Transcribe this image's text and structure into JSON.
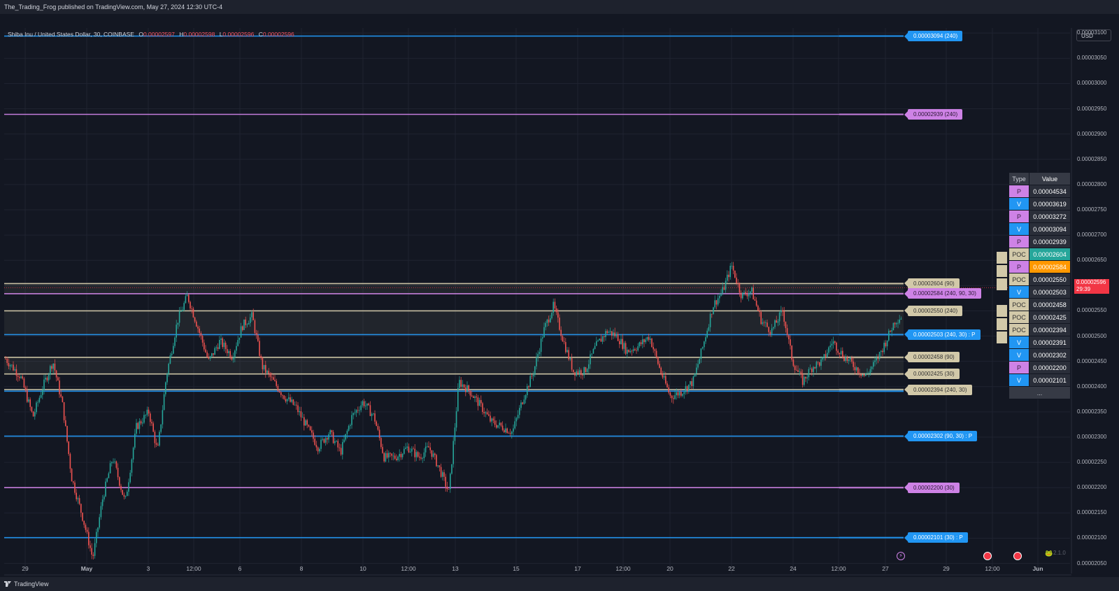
{
  "header": {
    "published": "The_Trading_Frog published on TradingView.com, May 27, 2024 12:30 UTC-4"
  },
  "legend": {
    "symbol": "Shiba Inu / United States Dollar, 30, COINBASE",
    "o_key": "O",
    "o": "0.00002597",
    "h_key": "H",
    "h": "0.00002598",
    "l_key": "L",
    "l": "0.00002596",
    "c_key": "C",
    "c": "0.00002596"
  },
  "currency": "USD",
  "current_price": {
    "value": "0.00002596",
    "countdown": "29:39"
  },
  "footer": {
    "brand": "TradingView"
  },
  "version_label": "2.1.0",
  "colors": {
    "background": "#131722",
    "up": "#26a69a",
    "down": "#ef5350",
    "blue": "#2196f3",
    "purple": "#ce82e6",
    "tan": "#d2c9a9"
  },
  "chart_data": {
    "type": "candlestick",
    "interval": "30",
    "y_range": [
      2.03e-05,
      3.11e-05
    ],
    "y_ticks": [
      "0.00003100",
      "0.00003050",
      "0.00003000",
      "0.00002950",
      "0.00002900",
      "0.00002850",
      "0.00002800",
      "0.00002750",
      "0.00002700",
      "0.00002650",
      "0.00002600",
      "0.00002550",
      "0.00002500",
      "0.00002450",
      "0.00002400",
      "0.00002350",
      "0.00002300",
      "0.00002250",
      "0.00002200",
      "0.00002150",
      "0.00002100",
      "0.00002050"
    ],
    "x_ticks": [
      "29",
      "May",
      "3",
      "12:00",
      "6",
      "8",
      "10",
      "12:00",
      "13",
      "15",
      "17",
      "12:00",
      "20",
      "22",
      "24",
      "12:00",
      "27",
      "29",
      "12:00",
      "Jun"
    ],
    "price_path": [
      [
        0,
        2.455e-05
      ],
      [
        1.2,
        2.42e-05
      ],
      [
        2.2,
        2.34e-05
      ],
      [
        3,
        2.4e-05
      ],
      [
        3.8,
        2.45e-05
      ],
      [
        4.6,
        2.36e-05
      ],
      [
        5.3,
        2.22e-05
      ],
      [
        6.2,
        2.14e-05
      ],
      [
        7.0,
        2.06e-05
      ],
      [
        7.8,
        2.18e-05
      ],
      [
        8.6,
        2.26e-05
      ],
      [
        9.6,
        2.17e-05
      ],
      [
        10.5,
        2.32e-05
      ],
      [
        11.5,
        2.35e-05
      ],
      [
        12.2,
        2.27e-05
      ],
      [
        12.9,
        2.42e-05
      ],
      [
        13.8,
        2.53e-05
      ],
      [
        14.6,
        2.58e-05
      ],
      [
        15.4,
        2.52e-05
      ],
      [
        16.3,
        2.45e-05
      ],
      [
        17.2,
        2.49e-05
      ],
      [
        18.2,
        2.46e-05
      ],
      [
        19.0,
        2.52e-05
      ],
      [
        19.8,
        2.54e-05
      ],
      [
        20.6,
        2.44e-05
      ],
      [
        21.5,
        2.41e-05
      ],
      [
        22.4,
        2.38e-05
      ],
      [
        23.3,
        2.36e-05
      ],
      [
        24.2,
        2.32e-05
      ],
      [
        25.1,
        2.28e-05
      ],
      [
        26.0,
        2.31e-05
      ],
      [
        26.9,
        2.27e-05
      ],
      [
        27.8,
        2.34e-05
      ],
      [
        28.7,
        2.37e-05
      ],
      [
        29.6,
        2.34e-05
      ],
      [
        30.4,
        2.26e-05
      ],
      [
        31.3,
        2.26e-05
      ],
      [
        32.3,
        2.28e-05
      ],
      [
        33.2,
        2.26e-05
      ],
      [
        34.0,
        2.28e-05
      ],
      [
        34.8,
        2.24e-05
      ],
      [
        35.6,
        2.19e-05
      ],
      [
        36.4,
        2.41e-05
      ],
      [
        37.3,
        2.39e-05
      ],
      [
        38.2,
        2.36e-05
      ],
      [
        39.0,
        2.33e-05
      ],
      [
        39.9,
        2.32e-05
      ],
      [
        40.7,
        2.31e-05
      ],
      [
        41.6,
        2.38e-05
      ],
      [
        42.4,
        2.43e-05
      ],
      [
        43.2,
        2.51e-05
      ],
      [
        44.0,
        2.56e-05
      ],
      [
        44.8,
        2.49e-05
      ],
      [
        45.6,
        2.43e-05
      ],
      [
        46.5,
        2.43e-05
      ],
      [
        47.4,
        2.48e-05
      ],
      [
        48.3,
        2.51e-05
      ],
      [
        49.1,
        2.5e-05
      ],
      [
        49.9,
        2.47e-05
      ],
      [
        50.8,
        2.48e-05
      ],
      [
        51.7,
        2.5e-05
      ],
      [
        52.6,
        2.43e-05
      ],
      [
        53.4,
        2.38e-05
      ],
      [
        54.3,
        2.39e-05
      ],
      [
        55.2,
        2.41e-05
      ],
      [
        56.0,
        2.48e-05
      ],
      [
        56.8,
        2.56e-05
      ],
      [
        57.6,
        2.59e-05
      ],
      [
        58.3,
        2.64e-05
      ],
      [
        59.1,
        2.58e-05
      ],
      [
        59.9,
        2.59e-05
      ],
      [
        60.7,
        2.53e-05
      ],
      [
        61.5,
        2.51e-05
      ],
      [
        62.4,
        2.55e-05
      ],
      [
        63.2,
        2.45e-05
      ],
      [
        64.0,
        2.41e-05
      ],
      [
        64.8,
        2.44e-05
      ],
      [
        65.6,
        2.45e-05
      ],
      [
        66.4,
        2.49e-05
      ],
      [
        67.3,
        2.46e-05
      ],
      [
        68.2,
        2.44e-05
      ],
      [
        69.0,
        2.42e-05
      ],
      [
        69.9,
        2.45e-05
      ],
      [
        70.7,
        2.49e-05
      ],
      [
        71.4,
        2.53e-05
      ],
      [
        72.0,
        2.54e-05
      ]
    ],
    "levels": [
      {
        "type": "V",
        "price": 3.094e-05,
        "label": "0.00003094 (240)",
        "color": "#2196f3"
      },
      {
        "type": "P",
        "price": 2.939e-05,
        "label": "0.00002939 (240)",
        "color": "#ce82e6"
      },
      {
        "type": "POC",
        "price": 2.604e-05,
        "label": "0.00002604 (90)",
        "color": "#d2c9a9"
      },
      {
        "type": "P",
        "price": 2.584e-05,
        "label": "0.00002584 (240, 90, 30)",
        "color": "#ce82e6"
      },
      {
        "type": "POC",
        "price": 2.55e-05,
        "label": "0.00002550 (240)",
        "color": "#d2c9a9"
      },
      {
        "type": "V",
        "price": 2.503e-05,
        "label": "0.00002503 (240, 30) : P",
        "color": "#2196f3"
      },
      {
        "type": "POC",
        "price": 2.458e-05,
        "label": "0.00002458 (90)",
        "color": "#d2c9a9"
      },
      {
        "type": "POC",
        "price": 2.425e-05,
        "label": "0.00002425 (30)",
        "color": "#d2c9a9"
      },
      {
        "type": "POC",
        "price": 2.394e-05,
        "label": "0.00002394 (240, 30)",
        "color": "#d2c9a9"
      },
      {
        "type": "V",
        "price": 2.391e-05,
        "label": "",
        "color": "#2196f3"
      },
      {
        "type": "V",
        "price": 2.302e-05,
        "label": "0.00002302 (90, 30) : P",
        "color": "#2196f3"
      },
      {
        "type": "P",
        "price": 2.2e-05,
        "label": "0.00002200 (30)",
        "color": "#ce82e6"
      },
      {
        "type": "V",
        "price": 2.101e-05,
        "label": "0.00002101 (30) : P",
        "color": "#2196f3"
      }
    ]
  },
  "table": {
    "headers": [
      "Type",
      "Value"
    ],
    "rows": [
      {
        "type": "P",
        "value": "0.00004534"
      },
      {
        "type": "V",
        "value": "0.00003619"
      },
      {
        "type": "P",
        "value": "0.00003272"
      },
      {
        "type": "V",
        "value": "0.00003094"
      },
      {
        "type": "P",
        "value": "0.00002939"
      },
      {
        "type": "POC",
        "value": "0.00002604"
      },
      {
        "type": "P",
        "value": "0.00002584"
      },
      {
        "type": "POC",
        "value": "0.00002550"
      },
      {
        "type": "V",
        "value": "0.00002503"
      },
      {
        "type": "POC",
        "value": "0.00002458"
      },
      {
        "type": "POC",
        "value": "0.00002425"
      },
      {
        "type": "POC",
        "value": "0.00002394"
      },
      {
        "type": "V",
        "value": "0.00002391"
      },
      {
        "type": "V",
        "value": "0.00002302"
      },
      {
        "type": "P",
        "value": "0.00002200"
      },
      {
        "type": "V",
        "value": "0.00002101"
      }
    ],
    "more": "..."
  }
}
